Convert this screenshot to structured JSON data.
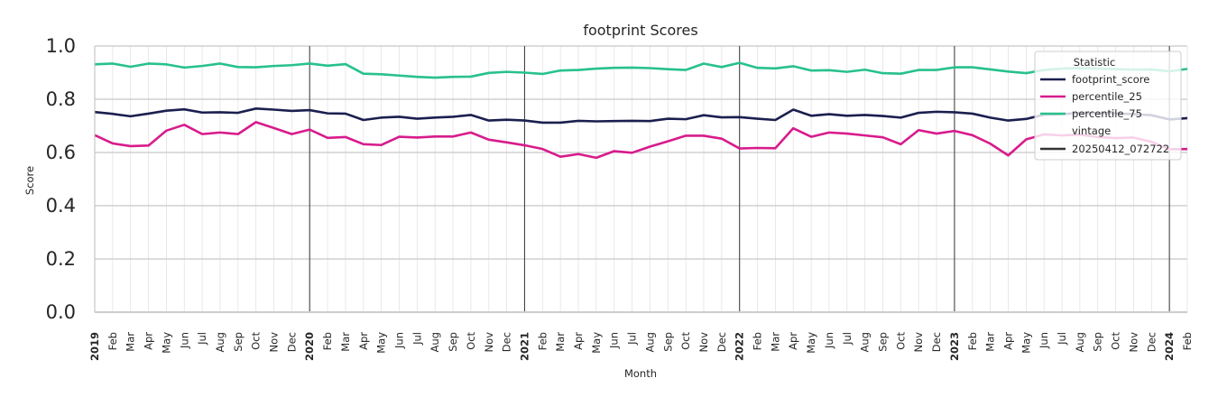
{
  "chart_data": {
    "type": "line",
    "title": "footprint Scores",
    "xlabel": "Month",
    "ylabel": "Score",
    "ylim": [
      0.0,
      1.0
    ],
    "yticks": [
      "0.0",
      "0.2",
      "0.4",
      "0.6",
      "0.8",
      "1.0"
    ],
    "grid": true,
    "legend_position": "top-right",
    "legend": {
      "title": "Statistic",
      "entries": [
        "footprint_score",
        "percentile_25",
        "percentile_75"
      ],
      "vintage_title": "vintage",
      "vintage_entries": [
        "20250412_072722"
      ]
    },
    "x_start": "2019-01",
    "x_end": "2024-02",
    "x_labels": [
      "2019",
      "Feb",
      "Mar",
      "Apr",
      "May",
      "Jun",
      "Jul",
      "Aug",
      "Sep",
      "Oct",
      "Nov",
      "Dec",
      "2020",
      "Feb",
      "Mar",
      "Apr",
      "May",
      "Jun",
      "Jul",
      "Aug",
      "Sep",
      "Oct",
      "Nov",
      "Dec",
      "2021",
      "Feb",
      "Mar",
      "Apr",
      "May",
      "Jun",
      "Jul",
      "Aug",
      "Sep",
      "Oct",
      "Nov",
      "Dec",
      "2022",
      "Feb",
      "Mar",
      "Apr",
      "May",
      "Jun",
      "Jul",
      "Aug",
      "Sep",
      "Oct",
      "Nov",
      "Dec",
      "2023",
      "Feb",
      "Mar",
      "Apr",
      "May",
      "Jun",
      "Jul",
      "Aug",
      "Sep",
      "Oct",
      "Nov",
      "Dec",
      "2024",
      "Feb"
    ],
    "year_boundaries": [
      "2020-01",
      "2021-01",
      "2022-01",
      "2023-01",
      "2024-01"
    ],
    "series": [
      {
        "name": "footprint_score",
        "color": "#1b1f4f",
        "values": [
          0.752,
          0.745,
          0.736,
          0.746,
          0.757,
          0.762,
          0.75,
          0.751,
          0.749,
          0.765,
          0.761,
          0.756,
          0.759,
          0.747,
          0.746,
          0.722,
          0.731,
          0.734,
          0.727,
          0.731,
          0.734,
          0.741,
          0.72,
          0.723,
          0.72,
          0.712,
          0.712,
          0.719,
          0.717,
          0.718,
          0.719,
          0.718,
          0.727,
          0.725,
          0.74,
          0.732,
          0.733,
          0.727,
          0.722,
          0.761,
          0.738,
          0.744,
          0.738,
          0.741,
          0.737,
          0.731,
          0.749,
          0.753,
          0.751,
          0.746,
          0.731,
          0.72,
          0.726,
          0.742,
          0.744,
          0.749,
          0.748,
          0.747,
          0.744,
          0.74,
          0.724,
          0.729
        ]
      },
      {
        "name": "percentile_25",
        "color": "#d81b8c",
        "values": [
          0.665,
          0.634,
          0.624,
          0.626,
          0.682,
          0.704,
          0.669,
          0.675,
          0.669,
          0.714,
          0.692,
          0.669,
          0.686,
          0.655,
          0.658,
          0.631,
          0.628,
          0.659,
          0.656,
          0.66,
          0.66,
          0.675,
          0.648,
          0.638,
          0.627,
          0.613,
          0.584,
          0.594,
          0.58,
          0.605,
          0.599,
          0.622,
          0.642,
          0.663,
          0.663,
          0.652,
          0.615,
          0.617,
          0.616,
          0.691,
          0.659,
          0.675,
          0.671,
          0.664,
          0.657,
          0.631,
          0.684,
          0.671,
          0.681,
          0.665,
          0.633,
          0.589,
          0.649,
          0.668,
          0.664,
          0.667,
          0.658,
          0.654,
          0.656,
          0.64,
          0.612,
          0.613
        ]
      },
      {
        "name": "percentile_75",
        "color": "#27c18c",
        "values": [
          0.931,
          0.934,
          0.922,
          0.934,
          0.931,
          0.919,
          0.925,
          0.934,
          0.921,
          0.92,
          0.925,
          0.928,
          0.934,
          0.926,
          0.932,
          0.896,
          0.894,
          0.889,
          0.884,
          0.881,
          0.884,
          0.885,
          0.899,
          0.903,
          0.9,
          0.895,
          0.908,
          0.91,
          0.915,
          0.918,
          0.919,
          0.917,
          0.913,
          0.91,
          0.934,
          0.921,
          0.937,
          0.918,
          0.916,
          0.924,
          0.908,
          0.909,
          0.903,
          0.911,
          0.898,
          0.896,
          0.91,
          0.91,
          0.92,
          0.92,
          0.912,
          0.904,
          0.898,
          0.91,
          0.915,
          0.917,
          0.915,
          0.913,
          0.911,
          0.912,
          0.905,
          0.914
        ]
      }
    ]
  }
}
